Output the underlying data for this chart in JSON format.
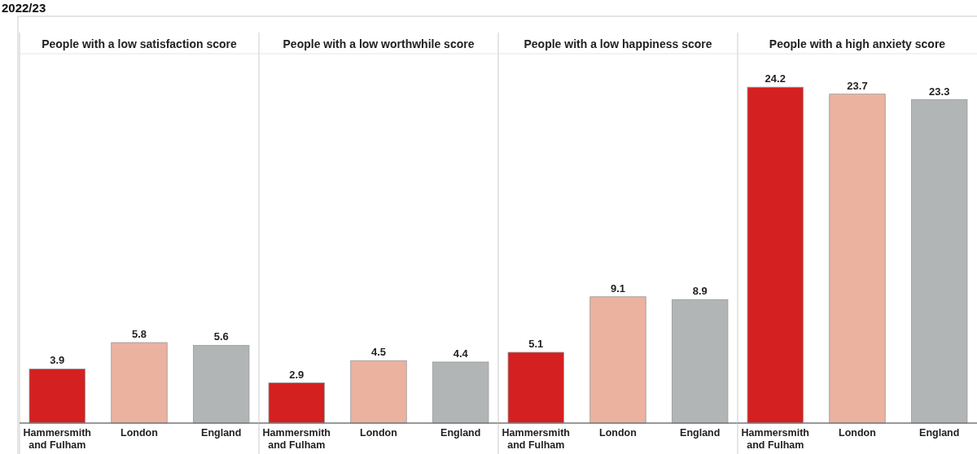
{
  "chart_data": [
    {
      "type": "bar",
      "title": "People with a low satisfaction score",
      "annotations": [
        "2022/23"
      ],
      "categories": [
        "Hammersmith and Fulham",
        "London",
        "England"
      ],
      "values": [
        3.9,
        5.8,
        5.6
      ],
      "colors": [
        "#d42020",
        "#ebb2a0",
        "#b2b5b6"
      ],
      "data_labels": true
    },
    {
      "type": "bar",
      "title": "People with a low worthwhile score",
      "categories": [
        "Hammersmith and Fulham",
        "London",
        "England"
      ],
      "values": [
        2.9,
        4.5,
        4.4
      ],
      "colors": [
        "#d42020",
        "#ebb2a0",
        "#b2b5b6"
      ],
      "data_labels": true
    },
    {
      "type": "bar",
      "title": "People with a low happiness score",
      "categories": [
        "Hammersmith and Fulham",
        "London",
        "England"
      ],
      "values": [
        5.1,
        9.1,
        8.9
      ],
      "colors": [
        "#d42020",
        "#ebb2a0",
        "#b2b5b6"
      ],
      "data_labels": true
    },
    {
      "type": "bar",
      "title": "People with a high anxiety score",
      "categories": [
        "Hammersmith and Fulham",
        "London",
        "England"
      ],
      "values": [
        24.2,
        23.7,
        23.3
      ],
      "colors": [
        "#d42020",
        "#ebb2a0",
        "#b2b5b6"
      ],
      "data_labels": true
    }
  ]
}
